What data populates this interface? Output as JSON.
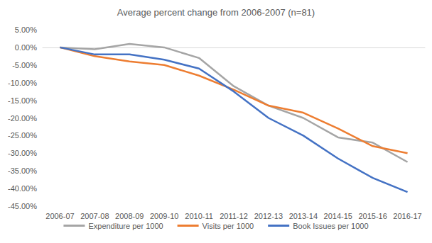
{
  "chart_data": {
    "type": "line",
    "title": "Average percent change from 2006-2007 (n=81)",
    "categories": [
      "2006-07",
      "2007-08",
      "2008-09",
      "2009-10",
      "2010-11",
      "2011-12",
      "2012-13",
      "2013-14",
      "2014-15",
      "2015-16",
      "2016-17"
    ],
    "series": [
      {
        "name": "Expenditure per 1000",
        "color": "#a5a5a5",
        "values": [
          0,
          -0.5,
          1,
          0,
          -3,
          -11,
          -16.5,
          -20,
          -25.5,
          -27,
          -32.5
        ]
      },
      {
        "name": "Visits per 1000",
        "color": "#ed7d31",
        "values": [
          0,
          -2.5,
          -4,
          -5,
          -8,
          -12,
          -16.5,
          -18.5,
          -23,
          -28,
          -30
        ]
      },
      {
        "name": "Book Issues per 1000",
        "color": "#4472c4",
        "values": [
          0,
          -2,
          -2,
          -3.5,
          -6,
          -12.5,
          -20,
          -25,
          -31.5,
          -37,
          -41
        ]
      }
    ],
    "ylim": [
      -45,
      5
    ],
    "yticks": [
      {
        "value": 5,
        "label": "5.00%"
      },
      {
        "value": 0,
        "label": "0.00%"
      },
      {
        "value": -5,
        "label": "-5.00%"
      },
      {
        "value": -10,
        "label": "-10.00%"
      },
      {
        "value": -15,
        "label": "-15.00%"
      },
      {
        "value": -20,
        "label": "-20.00%"
      },
      {
        "value": -25,
        "label": "-25.00%"
      },
      {
        "value": -30,
        "label": "-30.00%"
      },
      {
        "value": -35,
        "label": "-35.00%"
      },
      {
        "value": -40,
        "label": "-40.00%"
      },
      {
        "value": -45,
        "label": "-45.00%"
      }
    ],
    "grid": false,
    "legend": "bottom"
  }
}
